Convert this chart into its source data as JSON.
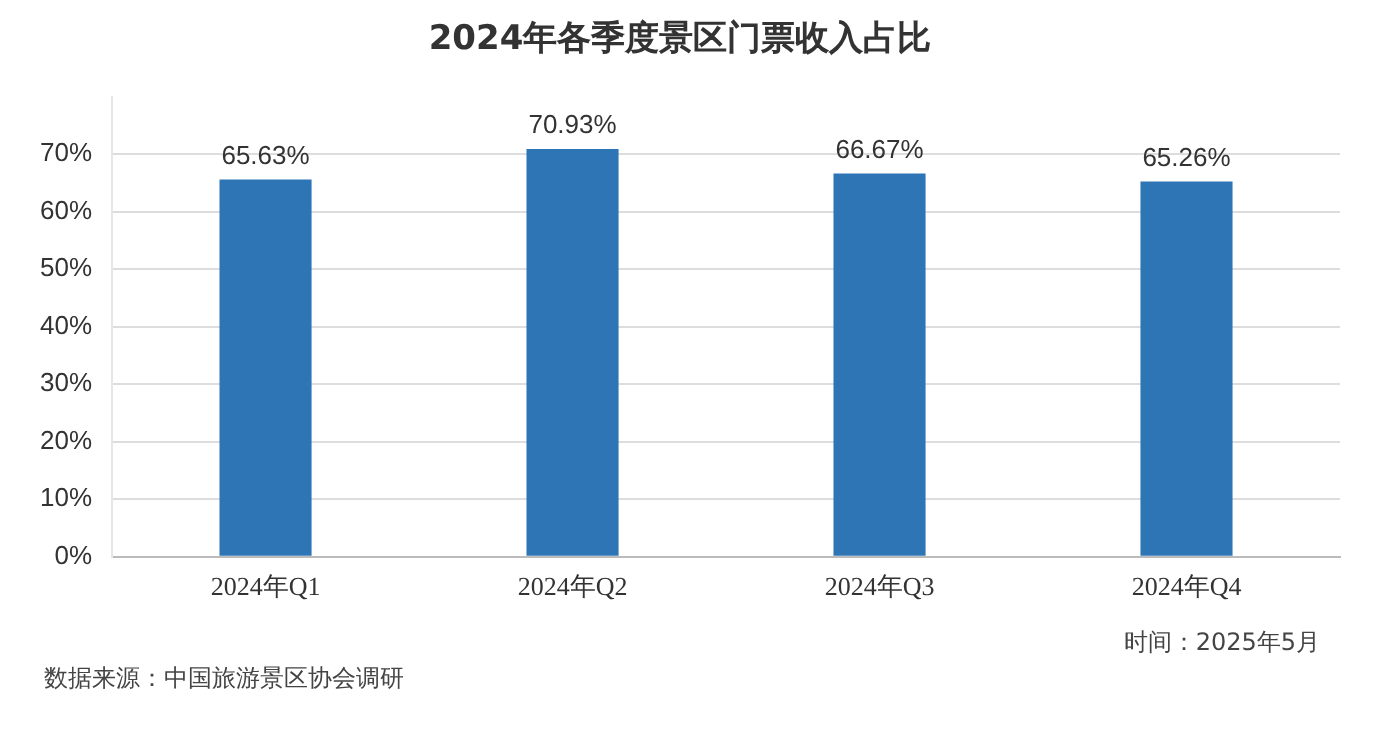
{
  "chart_data": {
    "type": "bar",
    "title": "2024年各季度景区门票收入占比",
    "categories": [
      "2024年Q1",
      "2024年Q2",
      "2024年Q3",
      "2024年Q4"
    ],
    "values": [
      65.63,
      70.93,
      66.67,
      65.26
    ],
    "value_labels": [
      "65.63%",
      "70.93%",
      "66.67%",
      "65.26%"
    ],
    "color": "#2e75b6",
    "ylim": [
      0,
      80
    ],
    "yticks": [
      {
        "value": 0,
        "label": "0%"
      },
      {
        "value": 10,
        "label": "10%"
      },
      {
        "value": 20,
        "label": "20%"
      },
      {
        "value": 30,
        "label": "30%"
      },
      {
        "value": 40,
        "label": "40%"
      },
      {
        "value": 50,
        "label": "50%"
      },
      {
        "value": 60,
        "label": "60%"
      },
      {
        "value": 70,
        "label": "70%"
      }
    ],
    "grid": "y",
    "annotations": [
      "时间：2025年5月",
      "数据来源：中国旅游景区协会调研"
    ]
  }
}
